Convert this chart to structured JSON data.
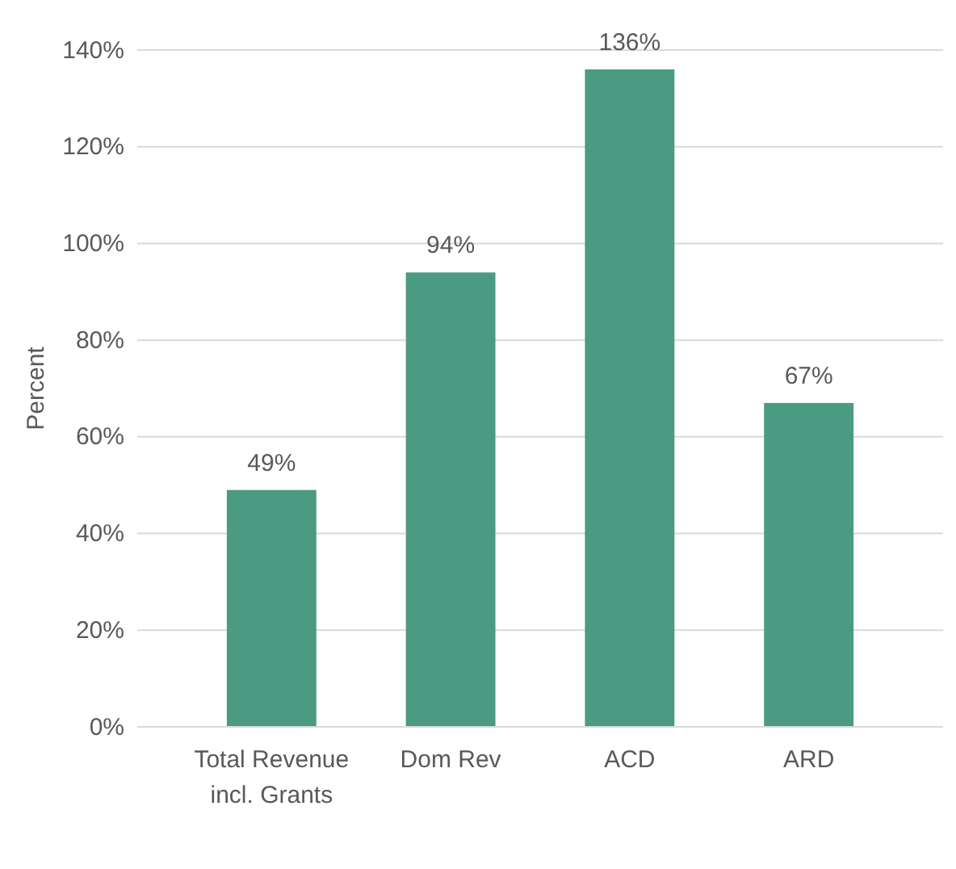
{
  "chart_data": {
    "type": "bar",
    "ylabel": "Percent",
    "categories": [
      "Total Revenue incl. Grants",
      "Dom Rev",
      "ACD",
      "ARD"
    ],
    "values": [
      49,
      94,
      136,
      67
    ],
    "value_labels": [
      "49%",
      "94%",
      "136%",
      "67%"
    ],
    "color": "#4a9b82",
    "ylim": [
      0,
      140
    ],
    "yticks": [
      {
        "value": 0,
        "label": "0%"
      },
      {
        "value": 20,
        "label": "20%"
      },
      {
        "value": 40,
        "label": "40%"
      },
      {
        "value": 60,
        "label": "60%"
      },
      {
        "value": 80,
        "label": "80%"
      },
      {
        "value": 100,
        "label": "100%"
      },
      {
        "value": 120,
        "label": "120%"
      },
      {
        "value": 140,
        "label": "140%"
      }
    ],
    "grid": "y"
  }
}
